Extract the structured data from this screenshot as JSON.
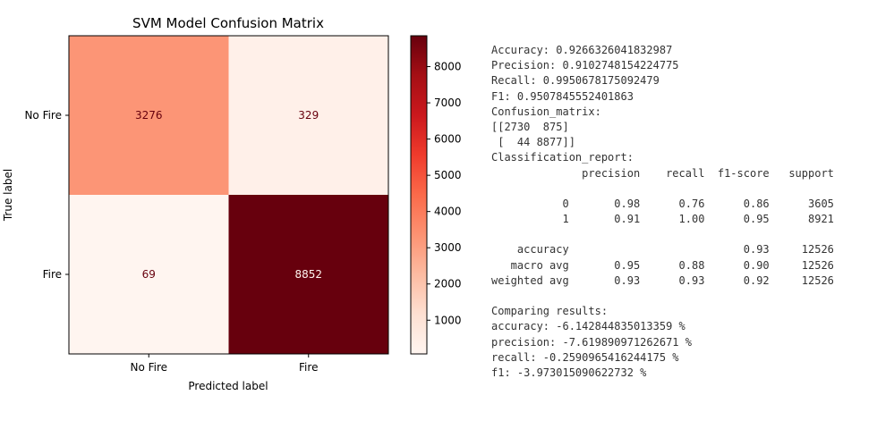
{
  "chart_data": {
    "type": "heatmap",
    "title": "SVM Model Confusion Matrix",
    "xlabel": "Predicted label",
    "ylabel": "True label",
    "x_categories": [
      "No Fire",
      "Fire"
    ],
    "y_categories": [
      "No Fire",
      "Fire"
    ],
    "values": [
      [
        3276,
        329
      ],
      [
        69,
        8852
      ]
    ],
    "colormap": "Reds",
    "colorbar": {
      "range": [
        69,
        8852
      ],
      "ticks": [
        1000,
        2000,
        3000,
        4000,
        5000,
        6000,
        7000,
        8000
      ]
    },
    "colors": {
      "low": "#fff5f0",
      "high": "#67000d",
      "light_text": "#fff5f0",
      "dark_text": "#67000d"
    }
  },
  "console_output": [
    "Accuracy: 0.9266326041832987",
    "Precision: 0.9102748154224775",
    "Recall: 0.9950678175092479",
    "F1: 0.9507845552401863",
    "Confusion_matrix:",
    "[[2730  875]",
    " [  44 8877]]",
    "Classification_report:",
    "              precision    recall  f1-score   support",
    "",
    "           0       0.98      0.76      0.86      3605",
    "           1       0.91      1.00      0.95      8921",
    "",
    "    accuracy                           0.93     12526",
    "   macro avg       0.95      0.88      0.90     12526",
    "weighted avg       0.93      0.93      0.92     12526",
    "",
    "Comparing results:",
    "accuracy: -6.142844835013359 %",
    "precision: -7.619890971262671 %",
    "recall: -0.2590965416244175 %",
    "f1: -3.973015090622732 %"
  ]
}
